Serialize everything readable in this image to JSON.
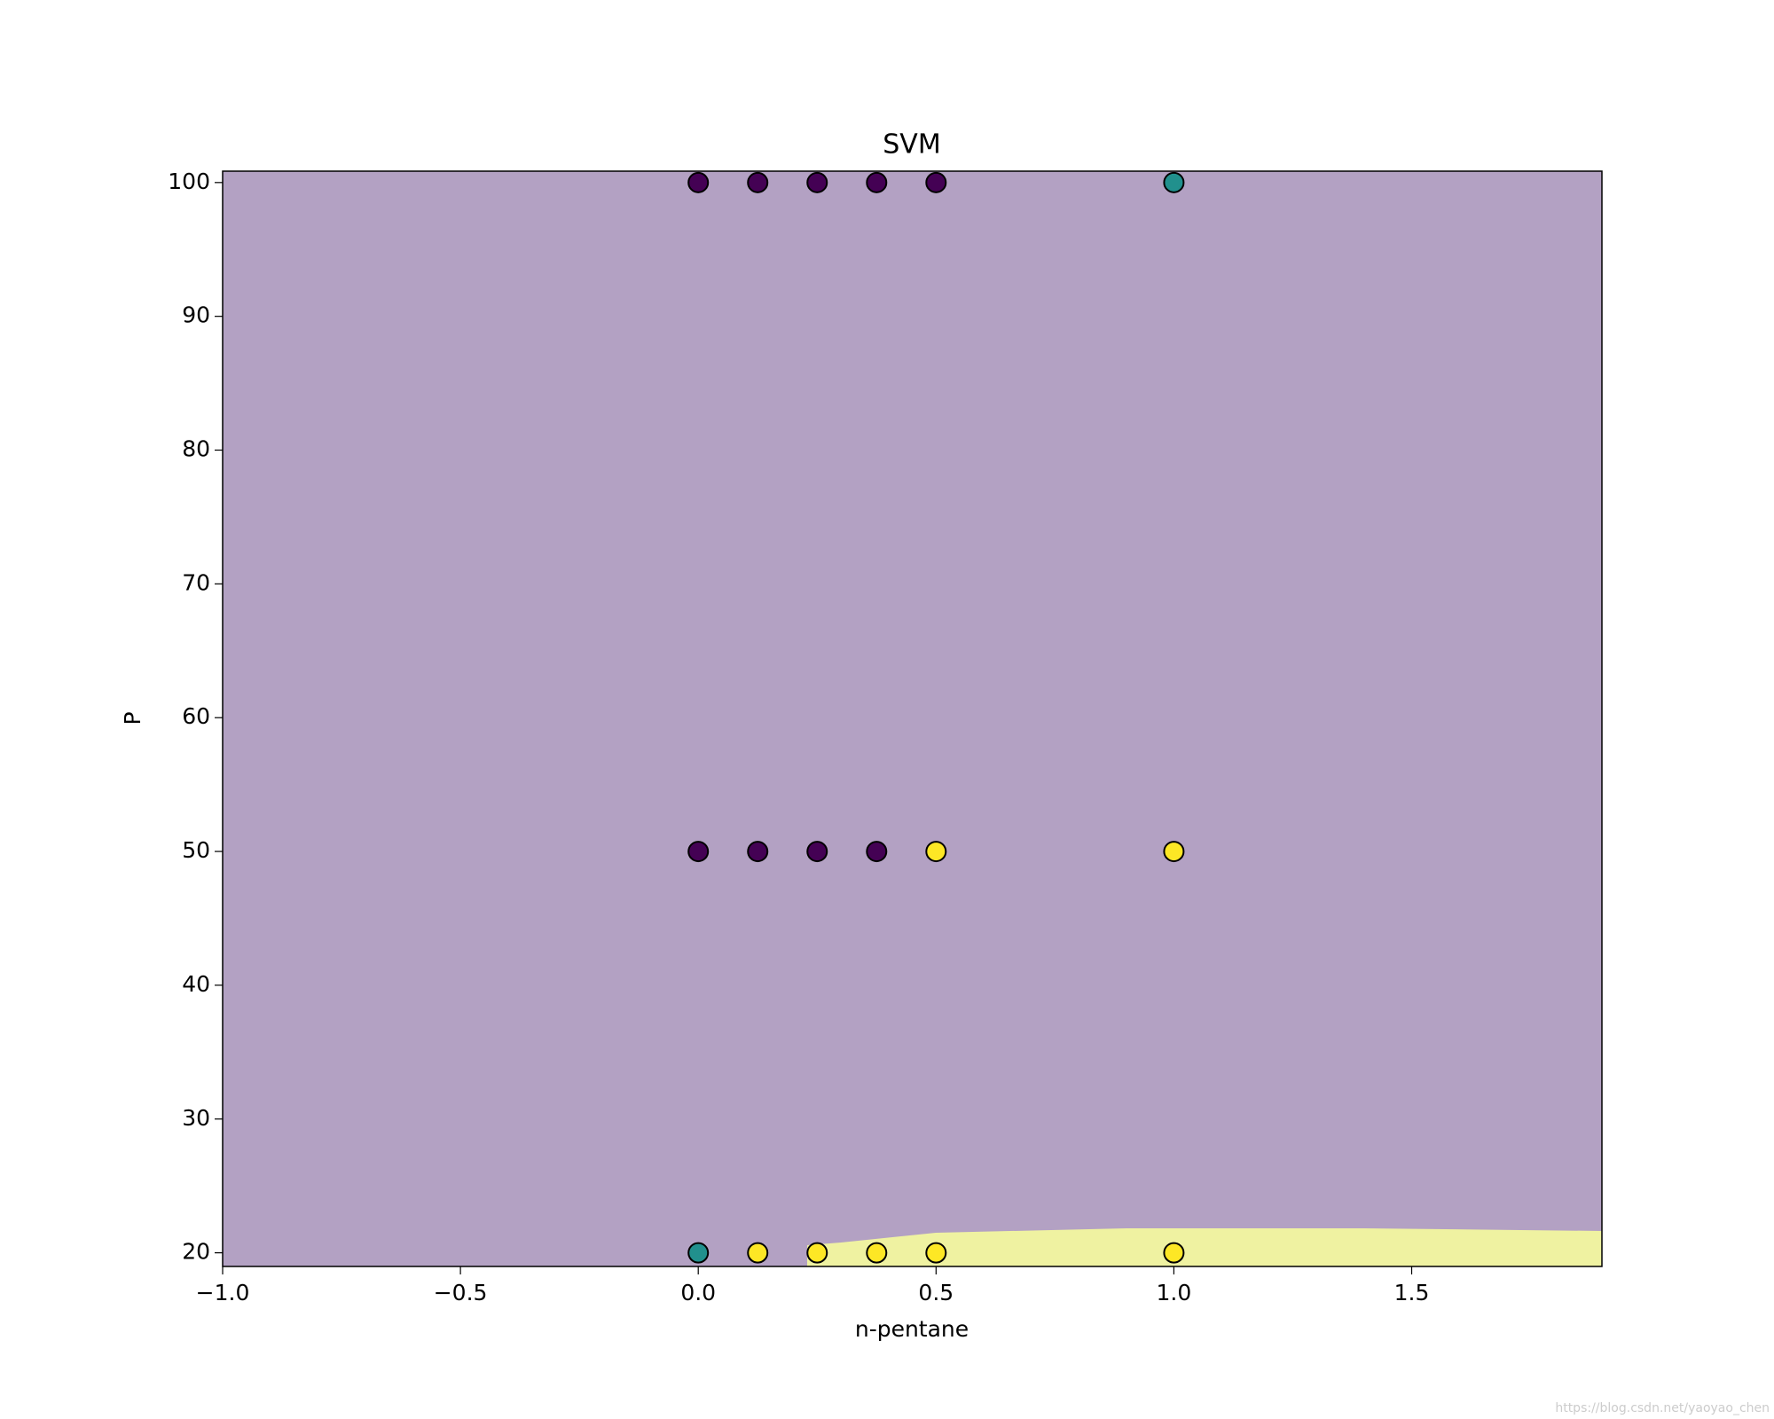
{
  "chart_data": {
    "type": "scatter",
    "title": "SVM",
    "x_label": "n-pentane",
    "y_label": "P",
    "xlim": [
      -1.0,
      1.9
    ],
    "ylim": [
      18.98,
      100.85
    ],
    "xticks": [
      {
        "value": -1.0,
        "label": "−1.0"
      },
      {
        "value": -0.5,
        "label": "−0.5"
      },
      {
        "value": 0,
        "label": "0.0"
      },
      0.5,
      {
        "value": 1,
        "label": "1.0"
      },
      1.5
    ],
    "yticks": [
      20,
      30,
      40,
      50,
      60,
      70,
      80,
      90,
      100
    ],
    "series": [
      {
        "color": "#440154",
        "x": [
          0,
          0.125,
          0.25,
          0.375,
          0.5,
          0,
          0.125,
          0.25,
          0.375
        ],
        "values": [
          100,
          100,
          100,
          100,
          100,
          50,
          50,
          50,
          50
        ]
      },
      {
        "color": "#21908d",
        "x": [
          1,
          0
        ],
        "values": [
          100,
          20
        ]
      },
      {
        "color": "#fde725",
        "x": [
          0.5,
          1,
          0.125,
          0.25,
          0.375,
          0.5,
          1
        ],
        "values": [
          50,
          50,
          20,
          20,
          20,
          20,
          20
        ]
      }
    ],
    "watermark": "https://blog.csdn.net/yaoyao_chen"
  }
}
